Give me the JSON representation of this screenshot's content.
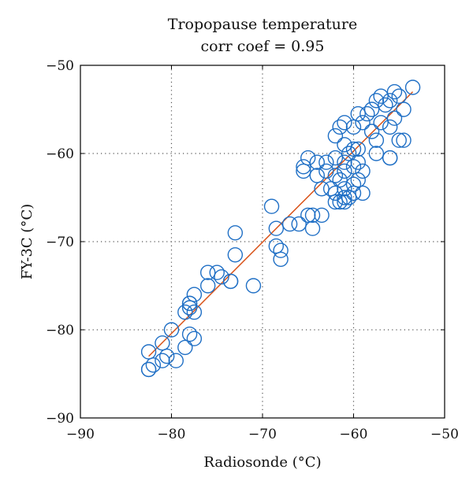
{
  "chart_data": {
    "type": "scatter",
    "title": "Tropopause temperature",
    "subtitle": "corr coef = 0.95",
    "xlabel": "Radiosonde (°C)",
    "ylabel": "FY-3C (°C)",
    "xlim": [
      -90,
      -50
    ],
    "ylim": [
      -90,
      -50
    ],
    "xticks": [
      -90,
      -80,
      -70,
      -60,
      -50
    ],
    "yticks": [
      -90,
      -80,
      -70,
      -60,
      -50
    ],
    "xtick_labels": [
      "−90",
      "−80",
      "−70",
      "−60",
      "−50"
    ],
    "ytick_labels": [
      "−90",
      "−80",
      "−70",
      "−60",
      "−50"
    ],
    "grid": "dotted",
    "marker": "open-circle",
    "colors": {
      "points": "#1f6fc5",
      "fit_line": "#d95319",
      "axes": "#000000",
      "grid": "#555555"
    },
    "series": [
      {
        "x": [
          -53.5,
          -54.5,
          -55,
          -55.5,
          -56,
          -56.5,
          -57,
          -57.5,
          -58,
          -58.5,
          -55.5,
          -56,
          -57,
          -58,
          -59,
          -59.5,
          -60,
          -61,
          -61.5,
          -60,
          -61,
          -62,
          -60.5,
          -59.5,
          -57.5,
          -54.5,
          -55,
          -56,
          -57.5,
          -59.5,
          -60,
          -61,
          -62,
          -63,
          -64,
          -65,
          -65.5,
          -65.5,
          -63,
          -64,
          -61,
          -62,
          -63.5,
          -62.5,
          -59,
          -59.5,
          -60,
          -61.5,
          -61,
          -62,
          -60,
          -59,
          -60.5,
          -61,
          -61,
          -62,
          -63.5,
          -64.5,
          -65,
          -64.5,
          -66,
          -67,
          -69,
          -68.5,
          -68.5,
          -68,
          -68,
          -73,
          -73,
          -73.5,
          -75,
          -74.5,
          -73.5,
          -76,
          -76,
          -77.5,
          -78,
          -78,
          -78,
          -77.5,
          -78.5,
          -78,
          -77.5,
          -80,
          -78.5,
          -81,
          -80.5,
          -82.5,
          -82.5,
          -81,
          -82,
          -79.5,
          -82.5,
          -71,
          -56,
          -61.5
        ],
        "y": [
          -52.5,
          -55,
          -53.5,
          -53,
          -54,
          -54.5,
          -53.5,
          -54,
          -55,
          -55.5,
          -56,
          -57,
          -56.5,
          -57.5,
          -56.5,
          -55.5,
          -57,
          -56.5,
          -57,
          -59.5,
          -59,
          -58,
          -60,
          -59.5,
          -58.5,
          -58.5,
          -58.5,
          -60.5,
          -60,
          -61,
          -61.5,
          -61,
          -60.5,
          -61,
          -61,
          -60.5,
          -61.5,
          -62,
          -62,
          -62.5,
          -62,
          -62.5,
          -64,
          -64,
          -62,
          -63,
          -63.5,
          -63,
          -64,
          -64.5,
          -64.5,
          -64.5,
          -65,
          -65.5,
          -65,
          -65.5,
          -67,
          -67,
          -67,
          -68.5,
          -68,
          -68,
          -66,
          -68.5,
          -70.5,
          -71,
          -72,
          -69,
          -71.5,
          -74.5,
          -73.5,
          -74,
          -74.5,
          -75,
          -73.5,
          -76,
          -77,
          -77,
          -77.5,
          -78,
          -78,
          -80.5,
          -81,
          -80,
          -82,
          -81.5,
          -83,
          -82.5,
          -84.5,
          -83.5,
          -84,
          -83.5,
          -84.5,
          -75,
          -60.5,
          -65.5
        ]
      }
    ],
    "fit_line": {
      "x": [
        -82.5,
        -53.5
      ],
      "y": [
        -83,
        -53
      ]
    }
  }
}
